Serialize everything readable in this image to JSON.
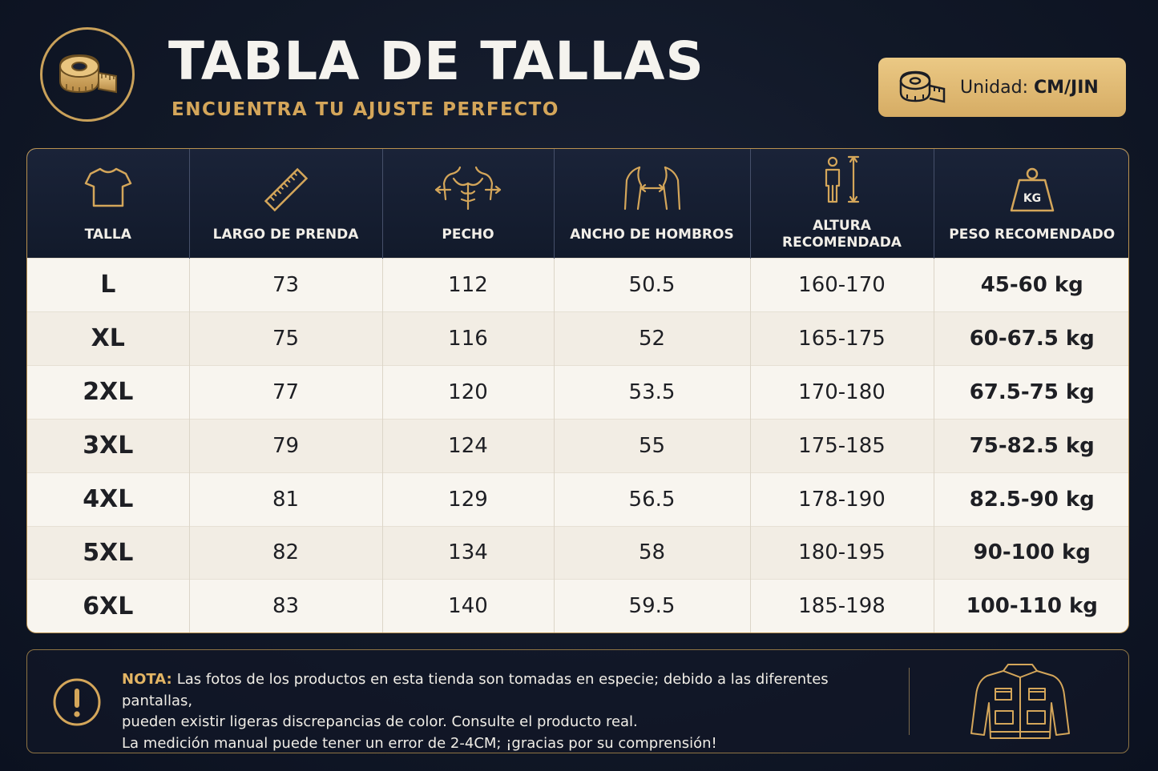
{
  "header": {
    "title": "TABLA DE TALLAS",
    "subtitle": "ENCUENTRA TU AJUSTE PERFECTO",
    "logo_icon": "measuring-tape-icon"
  },
  "unit": {
    "label": "Unidad:",
    "value": "CM/JIN",
    "icon": "measuring-tape-icon"
  },
  "colors": {
    "background": "#111827",
    "gold": "#d4a65a",
    "table_bg": "#f7f3ec",
    "header_bg": "#141c2e"
  },
  "table": {
    "columns": [
      {
        "label": "TALLA",
        "icon": "tshirt-icon"
      },
      {
        "label": "LARGO DE PRENDA",
        "icon": "ruler-icon"
      },
      {
        "label": "PECHO",
        "icon": "chest-icon"
      },
      {
        "label": "ANCHO DE HOMBROS",
        "icon": "shoulders-icon"
      },
      {
        "label": "ALTURA RECOMENDADA",
        "icon": "height-icon"
      },
      {
        "label": "PESO RECOMENDADO",
        "icon": "weight-icon"
      }
    ],
    "weight_icon_text": "KG",
    "rows": [
      [
        "L",
        "73",
        "112",
        "50.5",
        "160-170",
        "45-60 kg"
      ],
      [
        "XL",
        "75",
        "116",
        "52",
        "165-175",
        "60-67.5 kg"
      ],
      [
        "2XL",
        "77",
        "120",
        "53.5",
        "170-180",
        "67.5-75 kg"
      ],
      [
        "3XL",
        "79",
        "124",
        "55",
        "175-185",
        "75-82.5 kg"
      ],
      [
        "4XL",
        "81",
        "129",
        "56.5",
        "178-190",
        "82.5-90 kg"
      ],
      [
        "5XL",
        "82",
        "134",
        "58",
        "180-195",
        "90-100 kg"
      ],
      [
        "6XL",
        "83",
        "140",
        "59.5",
        "185-198",
        "100-110 kg"
      ]
    ]
  },
  "note": {
    "label": "NOTA:",
    "line1": "Las fotos de los productos en esta tienda son tomadas en especie; debido a las diferentes pantallas,",
    "line2": "pueden existir ligeras discrepancias de color.  Consulte el producto real.",
    "line3": "La medición manual puede tener un error de 2-4CM; ¡gracias por su comprensión!",
    "icon": "warning-icon",
    "illustration": "jacket-icon"
  }
}
